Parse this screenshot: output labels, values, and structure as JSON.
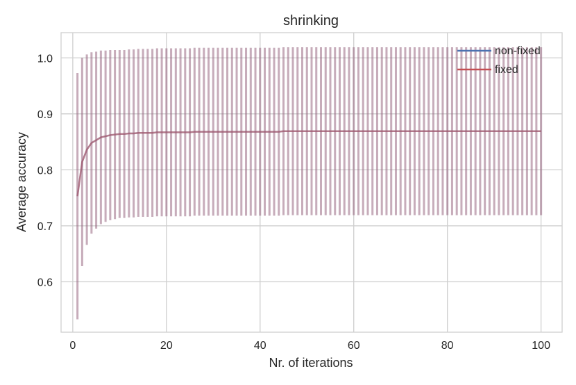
{
  "chart_data": {
    "type": "line",
    "title": "shrinking",
    "xlabel": "Nr. of iterations",
    "ylabel": "Average accuracy",
    "xlim": [
      -2.5,
      104.5
    ],
    "ylim": [
      0.51,
      1.045
    ],
    "xticks": [
      0,
      20,
      40,
      60,
      80,
      100
    ],
    "yticks": [
      0.6,
      0.7,
      0.8,
      0.9,
      1.0
    ],
    "ytick_labels": [
      "0.6",
      "0.7",
      "0.8",
      "0.9",
      "1.0"
    ],
    "grid": true,
    "legend_position": "top-right",
    "x": [
      1,
      2,
      3,
      4,
      5,
      6,
      7,
      8,
      9,
      10,
      11,
      12,
      13,
      14,
      15,
      16,
      17,
      18,
      19,
      20,
      21,
      22,
      23,
      24,
      25,
      26,
      27,
      28,
      29,
      30,
      31,
      32,
      33,
      34,
      35,
      36,
      37,
      38,
      39,
      40,
      41,
      42,
      43,
      44,
      45,
      46,
      47,
      48,
      49,
      50,
      51,
      52,
      53,
      54,
      55,
      56,
      57,
      58,
      59,
      60,
      61,
      62,
      63,
      64,
      65,
      66,
      67,
      68,
      69,
      70,
      71,
      72,
      73,
      74,
      75,
      76,
      77,
      78,
      79,
      80,
      81,
      82,
      83,
      84,
      85,
      86,
      87,
      88,
      89,
      90,
      91,
      92,
      93,
      94,
      95,
      96,
      97,
      98,
      99,
      100
    ],
    "series": [
      {
        "name": "non-fixed",
        "color": "#4c72b0",
        "mean": [
          0.753,
          0.814,
          0.836,
          0.848,
          0.853,
          0.858,
          0.86,
          0.862,
          0.863,
          0.864,
          0.864,
          0.865,
          0.865,
          0.866,
          0.866,
          0.866,
          0.866,
          0.867,
          0.867,
          0.867,
          0.867,
          0.867,
          0.867,
          0.867,
          0.867,
          0.868,
          0.868,
          0.868,
          0.868,
          0.868,
          0.868,
          0.868,
          0.868,
          0.868,
          0.868,
          0.868,
          0.868,
          0.868,
          0.868,
          0.868,
          0.868,
          0.868,
          0.868,
          0.868,
          0.869,
          0.869,
          0.869,
          0.869,
          0.869,
          0.869,
          0.869,
          0.869,
          0.869,
          0.869,
          0.869,
          0.869,
          0.869,
          0.869,
          0.869,
          0.869,
          0.869,
          0.869,
          0.869,
          0.869,
          0.869,
          0.869,
          0.869,
          0.869,
          0.869,
          0.869,
          0.869,
          0.869,
          0.869,
          0.869,
          0.869,
          0.869,
          0.869,
          0.869,
          0.869,
          0.869,
          0.869,
          0.869,
          0.869,
          0.869,
          0.869,
          0.869,
          0.869,
          0.869,
          0.869,
          0.869,
          0.869,
          0.869,
          0.869,
          0.869,
          0.869,
          0.869,
          0.869,
          0.869,
          0.869,
          0.869
        ],
        "err": [
          0.22,
          0.186,
          0.17,
          0.162,
          0.158,
          0.155,
          0.153,
          0.152,
          0.151,
          0.15,
          0.15,
          0.15,
          0.15,
          0.15,
          0.15,
          0.15,
          0.15,
          0.15,
          0.15,
          0.15,
          0.15,
          0.15,
          0.15,
          0.15,
          0.15,
          0.15,
          0.15,
          0.15,
          0.15,
          0.15,
          0.15,
          0.15,
          0.15,
          0.15,
          0.15,
          0.15,
          0.15,
          0.15,
          0.15,
          0.15,
          0.15,
          0.15,
          0.15,
          0.15,
          0.15,
          0.15,
          0.15,
          0.15,
          0.15,
          0.15,
          0.15,
          0.15,
          0.15,
          0.15,
          0.15,
          0.15,
          0.15,
          0.15,
          0.15,
          0.15,
          0.15,
          0.15,
          0.15,
          0.15,
          0.15,
          0.15,
          0.15,
          0.15,
          0.15,
          0.15,
          0.15,
          0.15,
          0.15,
          0.15,
          0.15,
          0.15,
          0.15,
          0.15,
          0.15,
          0.15,
          0.15,
          0.15,
          0.15,
          0.15,
          0.15,
          0.15,
          0.15,
          0.15,
          0.15,
          0.15,
          0.15,
          0.15,
          0.15,
          0.15,
          0.15,
          0.15,
          0.15,
          0.15,
          0.15,
          0.15
        ]
      },
      {
        "name": "fixed",
        "color": "#c44e52",
        "mean": [
          0.753,
          0.814,
          0.836,
          0.848,
          0.853,
          0.858,
          0.86,
          0.862,
          0.863,
          0.864,
          0.864,
          0.865,
          0.865,
          0.866,
          0.866,
          0.866,
          0.866,
          0.867,
          0.867,
          0.867,
          0.867,
          0.867,
          0.867,
          0.867,
          0.867,
          0.868,
          0.868,
          0.868,
          0.868,
          0.868,
          0.868,
          0.868,
          0.868,
          0.868,
          0.868,
          0.868,
          0.868,
          0.868,
          0.868,
          0.868,
          0.868,
          0.868,
          0.868,
          0.868,
          0.869,
          0.869,
          0.869,
          0.869,
          0.869,
          0.869,
          0.869,
          0.869,
          0.869,
          0.869,
          0.869,
          0.869,
          0.869,
          0.869,
          0.869,
          0.869,
          0.869,
          0.869,
          0.869,
          0.869,
          0.869,
          0.869,
          0.869,
          0.869,
          0.869,
          0.869,
          0.869,
          0.869,
          0.869,
          0.869,
          0.869,
          0.869,
          0.869,
          0.869,
          0.869,
          0.869,
          0.869,
          0.869,
          0.869,
          0.869,
          0.869,
          0.869,
          0.869,
          0.869,
          0.869,
          0.869,
          0.869,
          0.869,
          0.869,
          0.869,
          0.869,
          0.869,
          0.869,
          0.869,
          0.869,
          0.869
        ],
        "err": [
          0.22,
          0.186,
          0.17,
          0.162,
          0.158,
          0.155,
          0.153,
          0.152,
          0.151,
          0.15,
          0.15,
          0.15,
          0.15,
          0.15,
          0.15,
          0.15,
          0.15,
          0.15,
          0.15,
          0.15,
          0.15,
          0.15,
          0.15,
          0.15,
          0.15,
          0.15,
          0.15,
          0.15,
          0.15,
          0.15,
          0.15,
          0.15,
          0.15,
          0.15,
          0.15,
          0.15,
          0.15,
          0.15,
          0.15,
          0.15,
          0.15,
          0.15,
          0.15,
          0.15,
          0.15,
          0.15,
          0.15,
          0.15,
          0.15,
          0.15,
          0.15,
          0.15,
          0.15,
          0.15,
          0.15,
          0.15,
          0.15,
          0.15,
          0.15,
          0.15,
          0.15,
          0.15,
          0.15,
          0.15,
          0.15,
          0.15,
          0.15,
          0.15,
          0.15,
          0.15,
          0.15,
          0.15,
          0.15,
          0.15,
          0.15,
          0.15,
          0.15,
          0.15,
          0.15,
          0.15,
          0.15,
          0.15,
          0.15,
          0.15,
          0.15,
          0.15,
          0.15,
          0.15,
          0.15,
          0.15,
          0.15,
          0.15,
          0.15,
          0.15,
          0.15,
          0.15,
          0.15,
          0.15,
          0.15,
          0.15
        ]
      }
    ]
  }
}
